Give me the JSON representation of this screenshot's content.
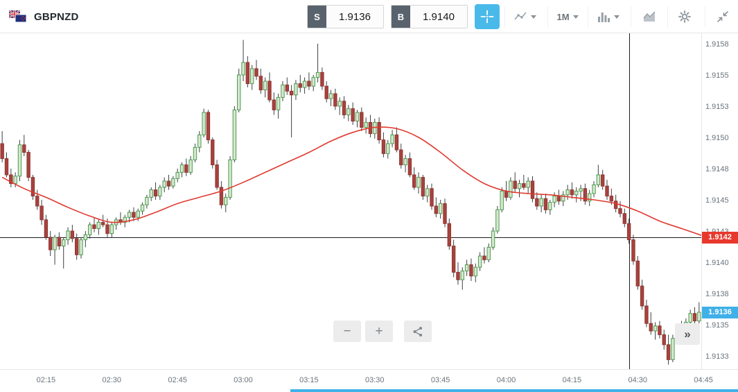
{
  "header": {
    "symbol": "GBPNZD",
    "sell": {
      "label": "S",
      "price": "1.9136"
    },
    "buy": {
      "label": "B",
      "price": "1.9140"
    },
    "timeframe": "1M"
  },
  "controls": {
    "zoom_out": "−",
    "zoom_in": "+",
    "fast_forward": "»"
  },
  "colors": {
    "accent_blue": "#49b9e9",
    "badge_red": "#e8382c",
    "badge_blue": "#3fb0e8",
    "candle_up_fill": "#d5e8d0",
    "candle_up_stroke": "#4e9a4e",
    "candle_down_fill": "#a8423d",
    "candle_down_stroke": "#8f3734",
    "wick": "#3c4043",
    "ma_line": "#e0382e",
    "scrollbar_blue": "#3fb2e8"
  },
  "chart_data": {
    "type": "candlestick",
    "symbol": "GBPNZD",
    "interval": "1m",
    "start_time": "02:05",
    "base_price": 1.91,
    "pip_size": 0.0001,
    "note_units": "OHLC values are pips above 1.91 (e.g. 48.3 = 1.91483)",
    "candles_ohlc_pips": [
      [
        49.5,
        50.5,
        48,
        48.3
      ],
      [
        48.3,
        48.8,
        46.8,
        47
      ],
      [
        47,
        47.5,
        46,
        46.3
      ],
      [
        46.3,
        47.2,
        46,
        46.9
      ],
      [
        46.9,
        49.8,
        46.5,
        49.4
      ],
      [
        49.4,
        50.2,
        48.5,
        48.8
      ],
      [
        48.8,
        49,
        46.5,
        46.8
      ],
      [
        46.8,
        47,
        45,
        45.3
      ],
      [
        45.3,
        45.8,
        44.2,
        44.5
      ],
      [
        44.5,
        45,
        43,
        43.4
      ],
      [
        43.4,
        43.8,
        41.8,
        42
      ],
      [
        42,
        42.5,
        40.5,
        41
      ],
      [
        41,
        42.2,
        39.8,
        42
      ],
      [
        42,
        42.4,
        41,
        41.3
      ],
      [
        41.3,
        42,
        39.5,
        41.8
      ],
      [
        41.8,
        42.8,
        41.4,
        42.5
      ],
      [
        42.5,
        43,
        41.6,
        41.9
      ],
      [
        41.9,
        42.3,
        40.2,
        40.6
      ],
      [
        40.6,
        42,
        40.3,
        41.8
      ],
      [
        41.8,
        42.5,
        41.2,
        42.2
      ],
      [
        42.2,
        43.2,
        41.9,
        43
      ],
      [
        43,
        43.6,
        42.4,
        42.7
      ],
      [
        42.7,
        43.4,
        42.2,
        43.2
      ],
      [
        43.2,
        43.8,
        42.8,
        43
      ],
      [
        43,
        43.5,
        42,
        42.3
      ],
      [
        42.3,
        43.2,
        42,
        43
      ],
      [
        43,
        43.6,
        42.6,
        43.4
      ],
      [
        43.4,
        44,
        43,
        43.2
      ],
      [
        43.2,
        43.8,
        42.8,
        43.6
      ],
      [
        43.6,
        44.2,
        43.2,
        44
      ],
      [
        44,
        44.4,
        43.3,
        43.6
      ],
      [
        43.6,
        44.3,
        43.3,
        44.1
      ],
      [
        44.1,
        44.8,
        43.8,
        44.6
      ],
      [
        44.6,
        45.4,
        44.3,
        45.2
      ],
      [
        45.2,
        46,
        44.9,
        45.8
      ],
      [
        45.8,
        46.4,
        45,
        45.3
      ],
      [
        45.3,
        46.2,
        45,
        46
      ],
      [
        46,
        46.8,
        45.6,
        46.5
      ],
      [
        46.5,
        47,
        45.8,
        46.1
      ],
      [
        46.1,
        46.9,
        45.9,
        46.7
      ],
      [
        46.7,
        47.5,
        46.4,
        47.2
      ],
      [
        47.2,
        48,
        46.8,
        47.8
      ],
      [
        47.8,
        48.3,
        46.9,
        47.2
      ],
      [
        47.2,
        48.5,
        47,
        48.2
      ],
      [
        48.2,
        49.5,
        48,
        49.2
      ],
      [
        49.2,
        50.5,
        48.8,
        50.2
      ],
      [
        50.2,
        52.3,
        50,
        52
      ],
      [
        52,
        52.2,
        49.5,
        49.8
      ],
      [
        49.8,
        50,
        47.5,
        47.8
      ],
      [
        47.8,
        48.2,
        45.8,
        46
      ],
      [
        46,
        46.5,
        44.3,
        44.6
      ],
      [
        44.6,
        45.5,
        44,
        45.2
      ],
      [
        45.2,
        48.5,
        45,
        48.2
      ],
      [
        48.2,
        52.5,
        48,
        52.2
      ],
      [
        52.2,
        55.5,
        52,
        55
      ],
      [
        55,
        57.8,
        54.5,
        56
      ],
      [
        56,
        56.5,
        54,
        54.3
      ],
      [
        54.3,
        55.8,
        53.8,
        55.5
      ],
      [
        55.5,
        56.2,
        54.6,
        54.9
      ],
      [
        54.9,
        55.5,
        53.5,
        53.8
      ],
      [
        53.8,
        54.8,
        53.2,
        54.5
      ],
      [
        54.5,
        55.2,
        52.8,
        53
      ],
      [
        53,
        53.6,
        51.8,
        52.2
      ],
      [
        52.2,
        53.5,
        51.5,
        53.2
      ],
      [
        53.2,
        54.5,
        52.9,
        54.2
      ],
      [
        54.2,
        54.8,
        53.4,
        53.7
      ],
      [
        53.7,
        54.2,
        50,
        53.4
      ],
      [
        53.4,
        54.6,
        53,
        54.3
      ],
      [
        54.3,
        55,
        53.6,
        54
      ],
      [
        54,
        54.8,
        53.5,
        54.5
      ],
      [
        54.5,
        55.2,
        53.8,
        54.1
      ],
      [
        54.1,
        55,
        53.7,
        54.8
      ],
      [
        54.8,
        57.5,
        54.4,
        55.2
      ],
      [
        55.2,
        55.6,
        53.8,
        54.1
      ],
      [
        54.1,
        54.5,
        52.8,
        53.1
      ],
      [
        53.1,
        53.8,
        52.5,
        53.5
      ],
      [
        53.5,
        53.9,
        52.2,
        52.5
      ],
      [
        52.5,
        53.2,
        51.8,
        52.9
      ],
      [
        52.9,
        53.3,
        51.5,
        51.8
      ],
      [
        51.8,
        52.6,
        51.3,
        52.3
      ],
      [
        52.3,
        52.8,
        51,
        51.3
      ],
      [
        51.3,
        52.2,
        50.8,
        52
      ],
      [
        52,
        52.4,
        50.5,
        50.8
      ],
      [
        50.8,
        51.6,
        50.3,
        51.2
      ],
      [
        51.2,
        51.8,
        50,
        50.3
      ],
      [
        50.3,
        51.5,
        49.9,
        51.2
      ],
      [
        51.2,
        51.6,
        49.5,
        49.8
      ],
      [
        49.8,
        50.4,
        48.4,
        48.7
      ],
      [
        48.7,
        49.8,
        48.3,
        49.5
      ],
      [
        49.5,
        50.6,
        49.2,
        50.2
      ],
      [
        50.2,
        50.8,
        48.8,
        49
      ],
      [
        49,
        49.5,
        47.5,
        47.8
      ],
      [
        47.8,
        48.6,
        47.2,
        48.3
      ],
      [
        48.3,
        48.8,
        46.8,
        47
      ],
      [
        47,
        47.6,
        45.8,
        46
      ],
      [
        46,
        47.2,
        45.5,
        46.8
      ],
      [
        46.8,
        47,
        45,
        45.3
      ],
      [
        45.3,
        46.2,
        44.8,
        45.9
      ],
      [
        45.9,
        46.3,
        44.2,
        44.5
      ],
      [
        44.5,
        45.2,
        43.6,
        43.9
      ],
      [
        43.9,
        45,
        43.5,
        44.7
      ],
      [
        44.7,
        45.1,
        42.8,
        43.1
      ],
      [
        43.1,
        43.5,
        41,
        41.3
      ],
      [
        41.3,
        41.8,
        38.8,
        39.2
      ],
      [
        39.2,
        40,
        38.2,
        38.6
      ],
      [
        38.6,
        39.6,
        37.8,
        39.3
      ],
      [
        39.3,
        40.2,
        38.9,
        39.8
      ],
      [
        39.8,
        40.3,
        38.5,
        38.9
      ],
      [
        38.9,
        39.9,
        38.4,
        39.6
      ],
      [
        39.6,
        40.8,
        39.3,
        40.5
      ],
      [
        40.5,
        41.2,
        39.9,
        40.2
      ],
      [
        40.2,
        41.5,
        40,
        41.2
      ],
      [
        41.2,
        42.8,
        41,
        42.5
      ],
      [
        42.5,
        44.5,
        42.3,
        44.2
      ],
      [
        44.2,
        46,
        44,
        45.7
      ],
      [
        45.7,
        46.5,
        44.9,
        45.2
      ],
      [
        45.2,
        46.8,
        45,
        46.5
      ],
      [
        46.5,
        47.2,
        45.6,
        45.9
      ],
      [
        45.9,
        46.6,
        45.2,
        46.3
      ],
      [
        46.3,
        47,
        45.8,
        46
      ],
      [
        46,
        46.8,
        45.5,
        46.5
      ],
      [
        46.5,
        46.9,
        44.8,
        45.1
      ],
      [
        45.1,
        45.6,
        44.2,
        44.5
      ],
      [
        44.5,
        45.4,
        44,
        45.1
      ],
      [
        45.1,
        45.5,
        43.9,
        44.2
      ],
      [
        44.2,
        45,
        43.8,
        44.8
      ],
      [
        44.8,
        45.6,
        44.4,
        45.3
      ],
      [
        45.3,
        45.8,
        44.6,
        44.9
      ],
      [
        44.9,
        45.7,
        44.5,
        45.4
      ],
      [
        45.4,
        46.2,
        45,
        45.8
      ],
      [
        45.8,
        46.4,
        45.1,
        45.4
      ],
      [
        45.4,
        46,
        44.8,
        45.7
      ],
      [
        45.7,
        46.2,
        44.9,
        45.9
      ],
      [
        45.9,
        46.3,
        44.6,
        44.9
      ],
      [
        44.9,
        45.8,
        44.5,
        45.5
      ],
      [
        45.5,
        46.5,
        45.2,
        46.2
      ],
      [
        46.2,
        47.8,
        46,
        47
      ],
      [
        47,
        47.4,
        45.8,
        46.1
      ],
      [
        46.1,
        46.6,
        45,
        45.3
      ],
      [
        45.3,
        45.9,
        44.6,
        44.9
      ],
      [
        44.9,
        45.4,
        44,
        44.3
      ],
      [
        44.3,
        44.9,
        43.6,
        43.9
      ],
      [
        43.9,
        44.3,
        42.8,
        43.1
      ],
      [
        43.1,
        43.5,
        41.5,
        41.8
      ],
      [
        41.8,
        42.2,
        39.8,
        40.1
      ],
      [
        40.1,
        40.5,
        37.8,
        38.1
      ],
      [
        38.1,
        38.6,
        36.2,
        36.5
      ],
      [
        36.5,
        37,
        34.8,
        35.1
      ],
      [
        35.1,
        36,
        34.2,
        34.5
      ],
      [
        34.5,
        35.2,
        33.8,
        34.9
      ],
      [
        34.9,
        35.3,
        33.9,
        34.2
      ],
      [
        34.2,
        34.6,
        33,
        33.4
      ],
      [
        33.4,
        34.2,
        31.8,
        32.2
      ],
      [
        32.2,
        34.2,
        32,
        33.9
      ],
      [
        33.9,
        35,
        33.6,
        34.7
      ],
      [
        34.7,
        35.3,
        33.8,
        34.1
      ],
      [
        34.1,
        35.5,
        33.9,
        35.2
      ],
      [
        35.2,
        36.2,
        34.9,
        35.9
      ],
      [
        35.9,
        36.4,
        35,
        35.3
      ],
      [
        35.3,
        36.8,
        35.1,
        36
      ]
    ],
    "ma_points": [
      [
        0,
        46.8
      ],
      [
        5,
        45.9
      ],
      [
        10,
        45.2
      ],
      [
        15,
        44.4
      ],
      [
        20,
        43.7
      ],
      [
        25,
        43.2
      ],
      [
        30,
        43.4
      ],
      [
        35,
        44
      ],
      [
        40,
        44.7
      ],
      [
        45,
        45.2
      ],
      [
        50,
        45.7
      ],
      [
        55,
        46.4
      ],
      [
        60,
        47.2
      ],
      [
        65,
        48
      ],
      [
        70,
        48.8
      ],
      [
        75,
        49.7
      ],
      [
        80,
        50.4
      ],
      [
        85,
        50.8
      ],
      [
        90,
        50.7
      ],
      [
        95,
        50
      ],
      [
        100,
        48.8
      ],
      [
        105,
        47.4
      ],
      [
        110,
        46.3
      ],
      [
        115,
        45.7
      ],
      [
        120,
        45.5
      ],
      [
        125,
        45.4
      ],
      [
        130,
        45.2
      ],
      [
        135,
        45
      ],
      [
        140,
        44.7
      ],
      [
        145,
        44.1
      ],
      [
        150,
        43.3
      ],
      [
        155,
        42.7
      ],
      [
        160,
        42.1
      ]
    ],
    "reference_line": {
      "pips": 42.0,
      "label": "1.9142"
    },
    "v_line": {
      "time": "04:28"
    },
    "last_price": {
      "pips": 36.0,
      "label": "1.9136"
    },
    "y_axis_ticks": [
      {
        "pips": 57.5,
        "label": "1.9158"
      },
      {
        "pips": 55.0,
        "label": "1.9155"
      },
      {
        "pips": 52.5,
        "label": "1.9153"
      },
      {
        "pips": 50.0,
        "label": "1.9150"
      },
      {
        "pips": 47.5,
        "label": "1.9148"
      },
      {
        "pips": 45.0,
        "label": "1.9145"
      },
      {
        "pips": 42.5,
        "label": "1.9143"
      },
      {
        "pips": 40.0,
        "label": "1.9140"
      },
      {
        "pips": 37.5,
        "label": "1.9138"
      },
      {
        "pips": 35.0,
        "label": "1.9135"
      },
      {
        "pips": 32.5,
        "label": "1.9133"
      }
    ],
    "x_axis_tick_times": [
      "02:15",
      "02:30",
      "02:45",
      "03:00",
      "03:15",
      "03:30",
      "03:45",
      "04:00",
      "04:15",
      "04:30",
      "04:45"
    ]
  }
}
